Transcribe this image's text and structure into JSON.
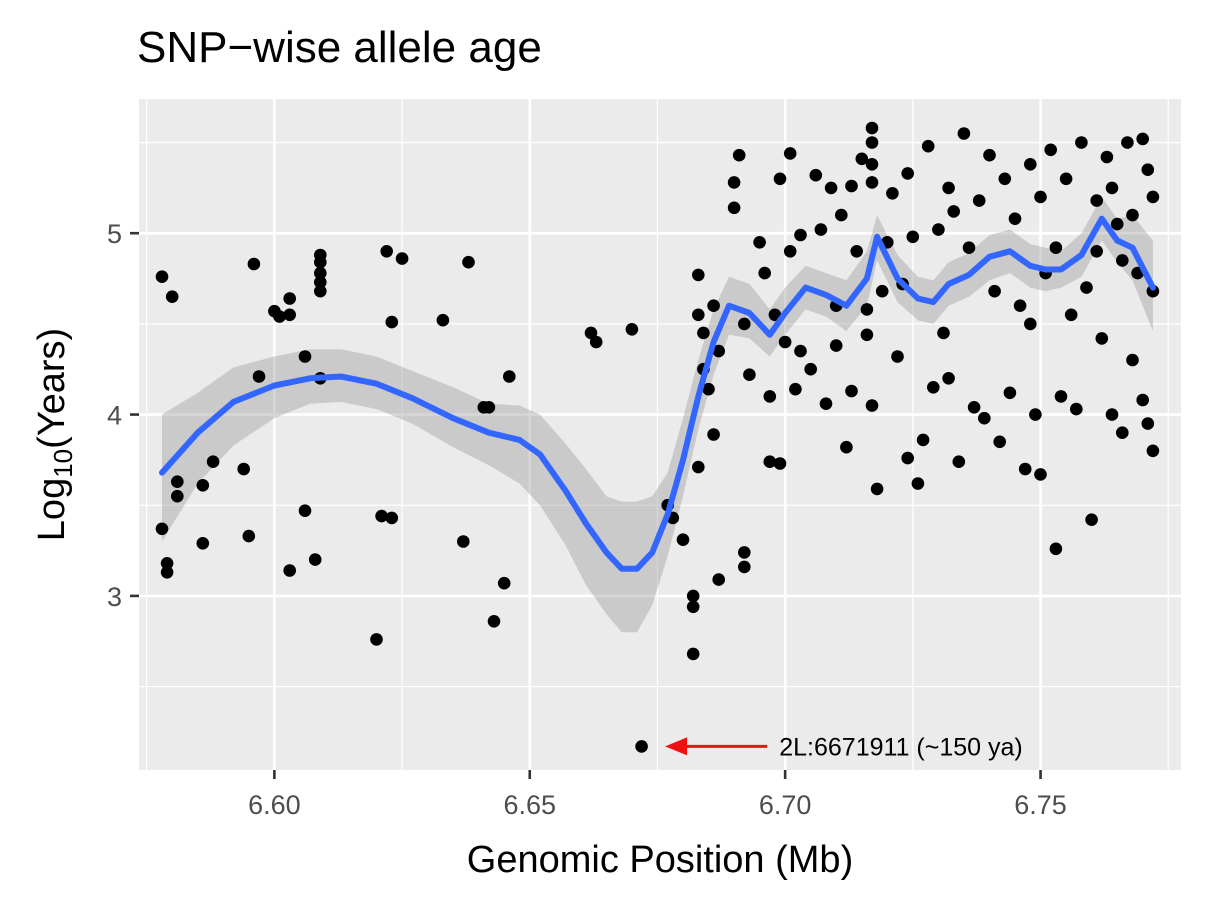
{
  "chart_data": {
    "type": "scatter",
    "title": "SNP−wise allele age",
    "xlabel": "Genomic Position (Mb)",
    "ylabel": {
      "main": "Log",
      "sub": "10",
      "rest": "(Years)"
    },
    "xlim": [
      6.5735,
      6.7775
    ],
    "ylim": [
      2.04,
      5.74
    ],
    "x_ticks": [
      6.6,
      6.65,
      6.7,
      6.75
    ],
    "x_tick_labels": [
      "6.60",
      "6.65",
      "6.70",
      "6.75"
    ],
    "y_ticks": [
      3,
      4,
      5
    ],
    "y_tick_labels": [
      "3",
      "4",
      "5"
    ],
    "grid": true,
    "colors": {
      "panel": "#ebebeb",
      "grid": "#ffffff",
      "points": "#000000",
      "smooth_line": "#3366ff",
      "ribbon": "#999999",
      "arrow": "#ee1111"
    },
    "annotation": {
      "text": "2L:6671911 (~150 ya)",
      "x": 6.6719,
      "y": 2.17,
      "arrow_from": [
        6.6965,
        2.17
      ],
      "arrow_to": [
        6.6765,
        2.17
      ]
    },
    "smooth": {
      "x": [
        6.578,
        6.585,
        6.592,
        6.6,
        6.607,
        6.613,
        6.62,
        6.627,
        6.635,
        6.642,
        6.648,
        6.652,
        6.657,
        6.661,
        6.665,
        6.668,
        6.671,
        6.674,
        6.677,
        6.68,
        6.683,
        6.686,
        6.689,
        6.693,
        6.697,
        6.7,
        6.704,
        6.708,
        6.712,
        6.716,
        6.718,
        6.722,
        6.726,
        6.729,
        6.732,
        6.736,
        6.74,
        6.744,
        6.748,
        6.751,
        6.754,
        6.758,
        6.762,
        6.765,
        6.768,
        6.772
      ],
      "y": [
        3.68,
        3.9,
        4.07,
        4.16,
        4.2,
        4.21,
        4.17,
        4.09,
        3.98,
        3.9,
        3.86,
        3.78,
        3.58,
        3.4,
        3.24,
        3.15,
        3.15,
        3.24,
        3.45,
        3.75,
        4.1,
        4.4,
        4.6,
        4.56,
        4.44,
        4.56,
        4.7,
        4.66,
        4.6,
        4.75,
        4.98,
        4.75,
        4.64,
        4.62,
        4.72,
        4.77,
        4.87,
        4.9,
        4.82,
        4.8,
        4.8,
        4.88,
        5.08,
        4.96,
        4.92,
        4.7
      ],
      "lower": [
        3.3,
        3.62,
        3.83,
        3.98,
        4.06,
        4.07,
        4.03,
        3.95,
        3.82,
        3.72,
        3.62,
        3.5,
        3.28,
        3.06,
        2.9,
        2.8,
        2.8,
        2.95,
        3.22,
        3.55,
        3.92,
        4.22,
        4.44,
        4.42,
        4.32,
        4.44,
        4.58,
        4.54,
        4.46,
        4.6,
        4.85,
        4.62,
        4.52,
        4.5,
        4.6,
        4.65,
        4.74,
        4.78,
        4.7,
        4.68,
        4.7,
        4.76,
        4.96,
        4.84,
        4.74,
        4.46
      ],
      "upper": [
        4.0,
        4.12,
        4.26,
        4.32,
        4.36,
        4.36,
        4.32,
        4.24,
        4.15,
        4.06,
        4.05,
        4.0,
        3.84,
        3.7,
        3.55,
        3.52,
        3.52,
        3.55,
        3.68,
        3.98,
        4.3,
        4.58,
        4.76,
        4.72,
        4.58,
        4.7,
        4.82,
        4.78,
        4.74,
        4.9,
        5.1,
        4.88,
        4.76,
        4.74,
        4.84,
        4.89,
        4.99,
        5.02,
        4.94,
        4.92,
        4.9,
        5.0,
        5.2,
        5.08,
        5.1,
        4.96
      ]
    },
    "points": [
      [
        6.578,
        4.76
      ],
      [
        6.58,
        4.65
      ],
      [
        6.581,
        3.63
      ],
      [
        6.581,
        3.55
      ],
      [
        6.578,
        3.37
      ],
      [
        6.579,
        3.18
      ],
      [
        6.579,
        3.13
      ],
      [
        6.586,
        3.61
      ],
      [
        6.586,
        3.29
      ],
      [
        6.588,
        3.74
      ],
      [
        6.594,
        3.7
      ],
      [
        6.595,
        3.33
      ],
      [
        6.596,
        4.83
      ],
      [
        6.597,
        4.21
      ],
      [
        6.6,
        4.57
      ],
      [
        6.601,
        4.54
      ],
      [
        6.603,
        4.64
      ],
      [
        6.603,
        4.55
      ],
      [
        6.603,
        3.14
      ],
      [
        6.606,
        4.32
      ],
      [
        6.606,
        3.47
      ],
      [
        6.608,
        3.2
      ],
      [
        6.609,
        4.88
      ],
      [
        6.609,
        4.84
      ],
      [
        6.609,
        4.78
      ],
      [
        6.609,
        4.73
      ],
      [
        6.609,
        4.68
      ],
      [
        6.609,
        4.2
      ],
      [
        6.62,
        2.76
      ],
      [
        6.621,
        3.44
      ],
      [
        6.622,
        4.9
      ],
      [
        6.623,
        4.51
      ],
      [
        6.623,
        3.43
      ],
      [
        6.625,
        4.86
      ],
      [
        6.633,
        4.52
      ],
      [
        6.637,
        3.3
      ],
      [
        6.638,
        4.84
      ],
      [
        6.641,
        4.04
      ],
      [
        6.642,
        4.04
      ],
      [
        6.643,
        2.86
      ],
      [
        6.645,
        3.07
      ],
      [
        6.646,
        4.21
      ],
      [
        6.662,
        4.45
      ],
      [
        6.663,
        4.4
      ],
      [
        6.67,
        4.47
      ],
      [
        6.6719,
        2.17
      ],
      [
        6.677,
        3.5
      ],
      [
        6.678,
        3.43
      ],
      [
        6.68,
        3.31
      ],
      [
        6.682,
        3.0
      ],
      [
        6.682,
        2.94
      ],
      [
        6.682,
        2.68
      ],
      [
        6.683,
        4.77
      ],
      [
        6.683,
        4.55
      ],
      [
        6.683,
        3.71
      ],
      [
        6.684,
        4.45
      ],
      [
        6.684,
        4.25
      ],
      [
        6.685,
        4.14
      ],
      [
        6.686,
        3.89
      ],
      [
        6.687,
        3.09
      ],
      [
        6.686,
        4.6
      ],
      [
        6.687,
        4.35
      ],
      [
        6.69,
        5.14
      ],
      [
        6.69,
        5.28
      ],
      [
        6.691,
        5.43
      ],
      [
        6.692,
        3.24
      ],
      [
        6.692,
        3.16
      ],
      [
        6.692,
        4.5
      ],
      [
        6.693,
        4.22
      ],
      [
        6.695,
        4.95
      ],
      [
        6.696,
        4.78
      ],
      [
        6.697,
        4.1
      ],
      [
        6.697,
        3.74
      ],
      [
        6.698,
        4.55
      ],
      [
        6.699,
        5.3
      ],
      [
        6.699,
        3.73
      ],
      [
        6.7,
        4.4
      ],
      [
        6.701,
        5.44
      ],
      [
        6.701,
        4.9
      ],
      [
        6.702,
        4.14
      ],
      [
        6.703,
        4.35
      ],
      [
        6.703,
        4.99
      ],
      [
        6.705,
        4.25
      ],
      [
        6.706,
        5.32
      ],
      [
        6.707,
        5.02
      ],
      [
        6.708,
        4.06
      ],
      [
        6.709,
        5.25
      ],
      [
        6.71,
        4.6
      ],
      [
        6.71,
        4.38
      ],
      [
        6.711,
        5.1
      ],
      [
        6.712,
        3.82
      ],
      [
        6.713,
        4.13
      ],
      [
        6.713,
        5.26
      ],
      [
        6.714,
        4.9
      ],
      [
        6.715,
        5.41
      ],
      [
        6.716,
        4.58
      ],
      [
        6.716,
        4.44
      ],
      [
        6.717,
        5.58
      ],
      [
        6.717,
        5.5
      ],
      [
        6.717,
        5.38
      ],
      [
        6.717,
        5.28
      ],
      [
        6.717,
        4.05
      ],
      [
        6.718,
        3.59
      ],
      [
        6.719,
        4.68
      ],
      [
        6.72,
        4.95
      ],
      [
        6.721,
        5.22
      ],
      [
        6.722,
        4.32
      ],
      [
        6.723,
        4.72
      ],
      [
        6.724,
        5.33
      ],
      [
        6.724,
        3.76
      ],
      [
        6.725,
        4.98
      ],
      [
        6.726,
        3.62
      ],
      [
        6.727,
        3.86
      ],
      [
        6.728,
        5.48
      ],
      [
        6.729,
        4.15
      ],
      [
        6.73,
        5.02
      ],
      [
        6.731,
        4.45
      ],
      [
        6.732,
        5.25
      ],
      [
        6.732,
        4.2
      ],
      [
        6.733,
        5.12
      ],
      [
        6.734,
        3.74
      ],
      [
        6.735,
        5.55
      ],
      [
        6.736,
        4.92
      ],
      [
        6.737,
        4.04
      ],
      [
        6.738,
        5.18
      ],
      [
        6.739,
        3.98
      ],
      [
        6.74,
        5.43
      ],
      [
        6.741,
        4.68
      ],
      [
        6.742,
        3.85
      ],
      [
        6.743,
        5.3
      ],
      [
        6.744,
        4.12
      ],
      [
        6.745,
        5.08
      ],
      [
        6.746,
        4.6
      ],
      [
        6.747,
        3.7
      ],
      [
        6.748,
        5.38
      ],
      [
        6.748,
        4.5
      ],
      [
        6.749,
        4.0
      ],
      [
        6.75,
        5.2
      ],
      [
        6.75,
        3.67
      ],
      [
        6.751,
        4.78
      ],
      [
        6.752,
        5.46
      ],
      [
        6.753,
        3.26
      ],
      [
        6.753,
        4.92
      ],
      [
        6.754,
        4.1
      ],
      [
        6.755,
        5.3
      ],
      [
        6.756,
        4.55
      ],
      [
        6.757,
        4.03
      ],
      [
        6.758,
        5.5
      ],
      [
        6.759,
        4.7
      ],
      [
        6.76,
        3.42
      ],
      [
        6.761,
        5.18
      ],
      [
        6.761,
        4.9
      ],
      [
        6.762,
        4.42
      ],
      [
        6.763,
        5.42
      ],
      [
        6.764,
        4.0
      ],
      [
        6.764,
        5.25
      ],
      [
        6.765,
        5.05
      ],
      [
        6.766,
        4.85
      ],
      [
        6.766,
        3.9
      ],
      [
        6.767,
        5.5
      ],
      [
        6.768,
        5.1
      ],
      [
        6.768,
        4.3
      ],
      [
        6.769,
        4.78
      ],
      [
        6.77,
        5.52
      ],
      [
        6.77,
        4.08
      ],
      [
        6.771,
        5.35
      ],
      [
        6.771,
        3.95
      ],
      [
        6.772,
        5.2
      ],
      [
        6.772,
        4.68
      ],
      [
        6.772,
        3.8
      ]
    ]
  }
}
